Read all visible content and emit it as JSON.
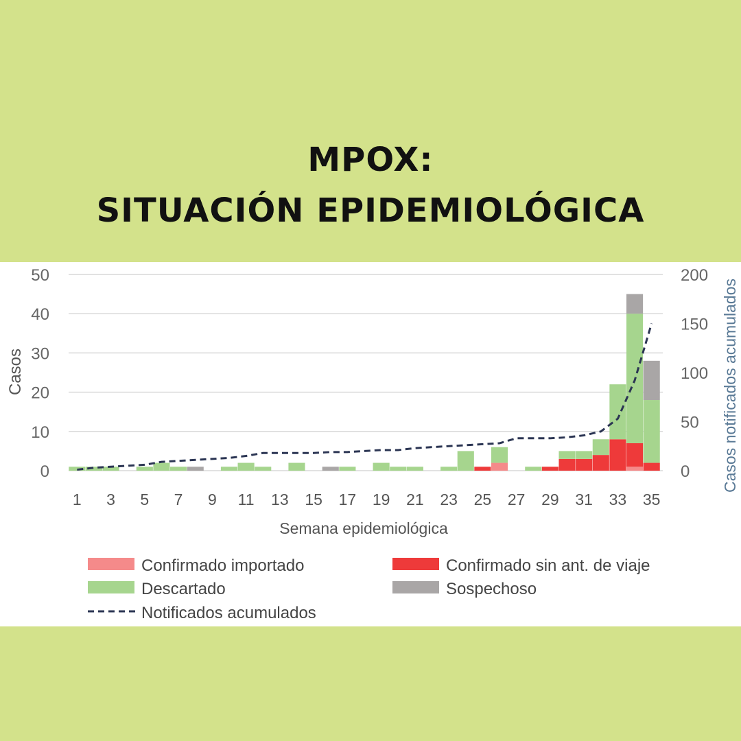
{
  "header": {
    "line1": "MPOX:",
    "line2": "SITUACIÓN EPIDEMIOLÓGICA"
  },
  "colors": {
    "background": "#d3e28b",
    "importado": "#f58a8a",
    "sin_viaje": "#ee3a3a",
    "descartado": "#a6d58e",
    "sospechoso": "#a9a6a6",
    "acumulados": "#2b3553"
  },
  "chart_data": {
    "type": "bar",
    "stacked": true,
    "xlabel": "Semana epidemiológica",
    "ylabel": "Casos",
    "y2label": "Casos notificados acumulados",
    "ylim": [
      0,
      50
    ],
    "y2lim": [
      0,
      200
    ],
    "yticks": [
      "0",
      "10",
      "20",
      "30",
      "40",
      "50"
    ],
    "y2ticks": [
      "0",
      "50",
      "100",
      "150",
      "200"
    ],
    "xticks": [
      "1",
      "3",
      "5",
      "7",
      "9",
      "11",
      "13",
      "15",
      "17",
      "19",
      "21",
      "23",
      "25",
      "27",
      "29",
      "31",
      "33",
      "35"
    ],
    "grid": true,
    "legend_position": "bottom",
    "weeks": [
      1,
      2,
      3,
      4,
      5,
      6,
      7,
      8,
      9,
      10,
      11,
      12,
      13,
      14,
      15,
      16,
      17,
      18,
      19,
      20,
      21,
      22,
      23,
      24,
      25,
      26,
      27,
      28,
      29,
      30,
      31,
      32,
      33,
      34,
      35
    ],
    "series": [
      {
        "name": "Confirmado importado",
        "values": [
          0,
          0,
          0,
          0,
          0,
          0,
          0,
          0,
          0,
          0,
          0,
          0,
          0,
          0,
          0,
          0,
          0,
          0,
          0,
          0,
          0,
          0,
          0,
          0,
          0,
          2,
          0,
          0,
          0,
          0,
          0,
          0,
          0,
          1,
          0
        ]
      },
      {
        "name": "Confirmado sin ant. de viaje",
        "values": [
          0,
          0,
          0,
          0,
          0,
          0,
          0,
          0,
          0,
          0,
          0,
          0,
          0,
          0,
          0,
          0,
          0,
          0,
          0,
          0,
          0,
          0,
          0,
          0,
          1,
          0,
          0,
          0,
          1,
          3,
          3,
          4,
          8,
          6,
          2
        ]
      },
      {
        "name": "Descartado",
        "values": [
          1,
          1,
          1,
          0,
          1,
          2,
          1,
          0,
          0,
          1,
          2,
          1,
          0,
          2,
          0,
          0,
          1,
          0,
          2,
          1,
          1,
          0,
          1,
          5,
          0,
          4,
          0,
          1,
          0,
          2,
          2,
          4,
          14,
          33,
          16
        ]
      },
      {
        "name": "Sospechoso",
        "values": [
          0,
          0,
          0,
          0,
          0,
          0,
          0,
          1,
          0,
          0,
          0,
          0,
          0,
          0,
          0,
          1,
          0,
          0,
          0,
          0,
          0,
          0,
          0,
          0,
          0,
          0,
          0,
          0,
          0,
          0,
          0,
          0,
          0,
          5,
          10
        ]
      }
    ],
    "line": {
      "name": "Notificados acumulados",
      "axis": "right",
      "values": [
        1,
        3,
        4,
        5,
        6,
        9,
        10,
        11,
        12,
        13,
        15,
        18,
        18,
        18,
        18,
        19,
        19,
        20,
        21,
        21,
        23,
        24,
        25,
        26,
        27,
        28,
        33,
        33,
        33,
        34,
        36,
        40,
        53,
        92,
        150
      ]
    }
  }
}
